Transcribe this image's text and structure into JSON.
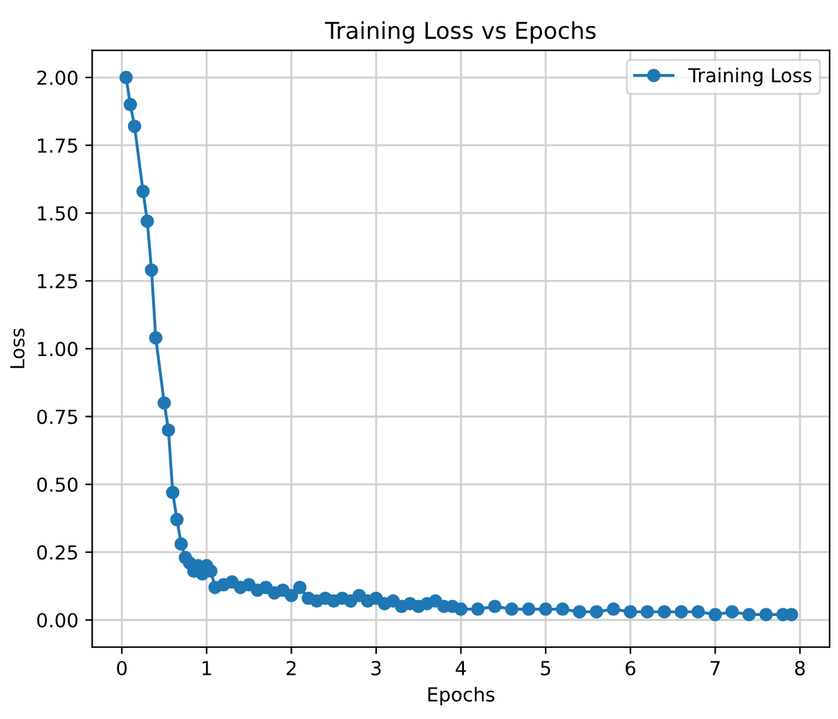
{
  "chart_data": {
    "type": "line",
    "title": "Training Loss vs Epochs",
    "xlabel": "Epochs",
    "ylabel": "Loss",
    "xlim": [
      -0.35,
      8.35
    ],
    "ylim": [
      -0.1,
      2.1
    ],
    "xticks": [
      0,
      1,
      2,
      3,
      4,
      5,
      6,
      7,
      8
    ],
    "yticks": [
      {
        "value": 0,
        "label": "0.00"
      },
      {
        "value": 0.25,
        "label": "0.25"
      },
      {
        "value": 0.5,
        "label": "0.50"
      },
      {
        "value": 0.75,
        "label": "0.75"
      },
      {
        "value": 1.0,
        "label": "1.00"
      },
      {
        "value": 1.25,
        "label": "1.25"
      },
      {
        "value": 1.5,
        "label": "1.50"
      },
      {
        "value": 1.75,
        "label": "1.75"
      },
      {
        "value": 2.0,
        "label": "2.00"
      }
    ],
    "grid": true,
    "legend": "top right",
    "marker": "circle",
    "line_style": "solid",
    "series": [
      {
        "name": "Training Loss",
        "color": "#1f77b4",
        "x": [
          0.05,
          0.1,
          0.15,
          0.25,
          0.3,
          0.35,
          0.4,
          0.5,
          0.55,
          0.6,
          0.65,
          0.7,
          0.75,
          0.8,
          0.85,
          0.9,
          0.95,
          1.0,
          1.05,
          1.1,
          1.2,
          1.3,
          1.4,
          1.5,
          1.6,
          1.7,
          1.8,
          1.9,
          2.0,
          2.1,
          2.2,
          2.3,
          2.4,
          2.5,
          2.6,
          2.7,
          2.8,
          2.9,
          3.0,
          3.1,
          3.2,
          3.3,
          3.4,
          3.5,
          3.6,
          3.7,
          3.8,
          3.9,
          4.0,
          4.2,
          4.4,
          4.6,
          4.8,
          5.0,
          5.2,
          5.4,
          5.6,
          5.8,
          6.0,
          6.2,
          6.4,
          6.6,
          6.8,
          7.0,
          7.2,
          7.4,
          7.6,
          7.8,
          7.9
        ],
        "values": [
          2.0,
          1.9,
          1.82,
          1.58,
          1.47,
          1.29,
          1.04,
          0.8,
          0.7,
          0.47,
          0.37,
          0.28,
          0.23,
          0.21,
          0.18,
          0.2,
          0.17,
          0.2,
          0.18,
          0.12,
          0.13,
          0.14,
          0.12,
          0.13,
          0.11,
          0.12,
          0.1,
          0.11,
          0.09,
          0.12,
          0.08,
          0.07,
          0.08,
          0.07,
          0.08,
          0.07,
          0.09,
          0.07,
          0.08,
          0.06,
          0.07,
          0.05,
          0.06,
          0.05,
          0.06,
          0.07,
          0.05,
          0.05,
          0.04,
          0.04,
          0.05,
          0.04,
          0.04,
          0.04,
          0.04,
          0.03,
          0.03,
          0.04,
          0.03,
          0.03,
          0.03,
          0.03,
          0.03,
          0.02,
          0.03,
          0.02,
          0.02,
          0.02,
          0.02
        ]
      }
    ]
  }
}
